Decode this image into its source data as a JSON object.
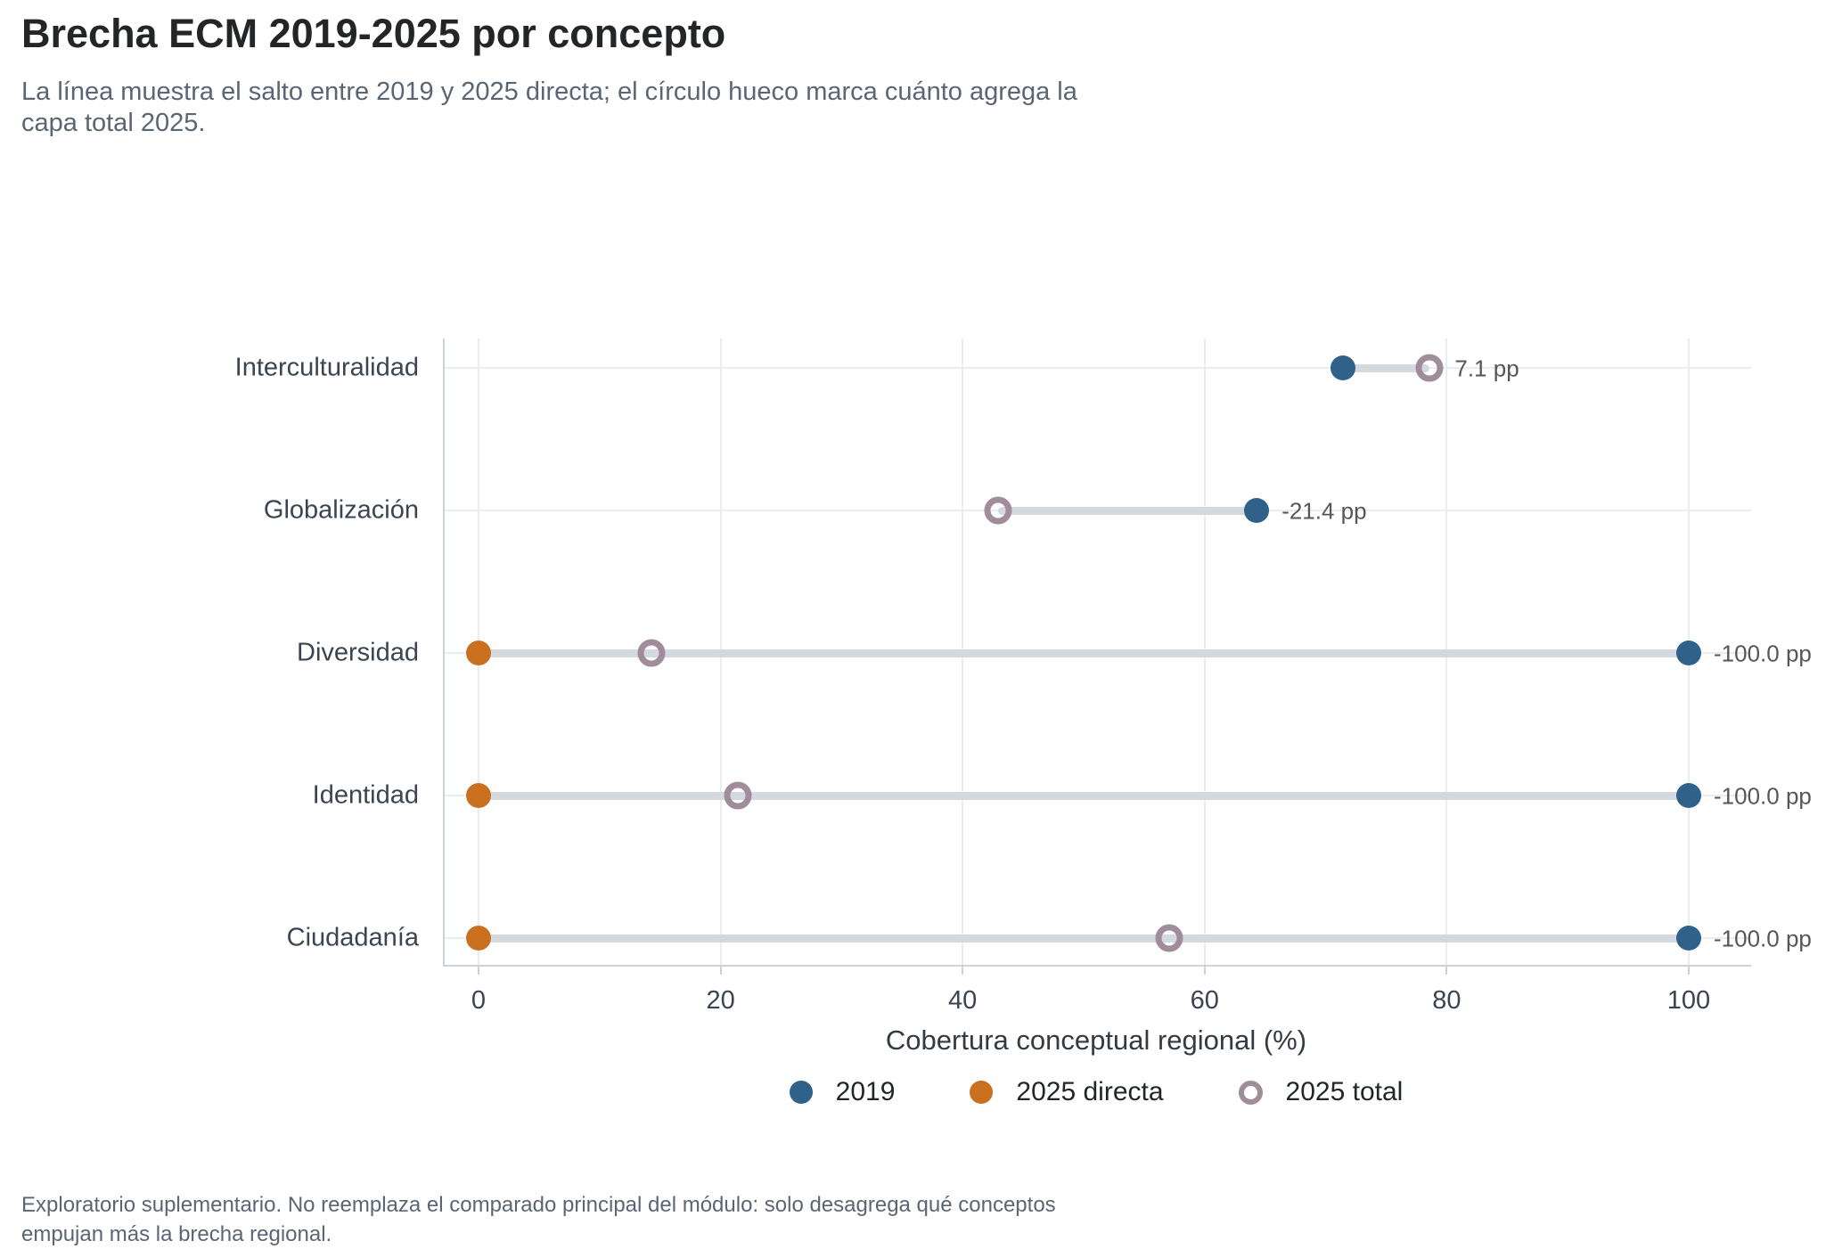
{
  "header": {
    "title": "Brecha ECM 2019-2025 por concepto",
    "subtitle_line1": "La línea muestra el salto entre 2019 y 2025 directa; el círculo hueco marca cuánto agrega la",
    "subtitle_line2": "capa total 2025."
  },
  "footer": {
    "line1": "Exploratorio suplementario. No reemplaza el comparado principal del módulo: solo desagrega qué conceptos",
    "line2": "empujan más la brecha regional."
  },
  "chart_data": {
    "type": "dumbbell",
    "title": "Brecha ECM 2019-2025 por concepto",
    "xlabel": "Cobertura conceptual regional (%)",
    "xlim": [
      0,
      100
    ],
    "xticks": [
      0,
      20,
      40,
      60,
      80,
      100
    ],
    "grid": true,
    "legend": [
      "2019",
      "2025 directa",
      "2025 total"
    ],
    "legend_position": "bottom-center",
    "categories": [
      "Interculturalidad",
      "Globalización",
      "Diversidad",
      "Identidad",
      "Ciudadanía"
    ],
    "rows": [
      {
        "category": "Interculturalidad",
        "v2019": 71.4,
        "v2025_directa": 78.6,
        "v2025_total": 78.6,
        "delta_label": "7.1 pp",
        "directa_marker_visible": false
      },
      {
        "category": "Globalización",
        "v2019": 64.3,
        "v2025_directa": 42.9,
        "v2025_total": 42.9,
        "delta_label": "-21.4 pp",
        "directa_marker_visible": false
      },
      {
        "category": "Diversidad",
        "v2019": 100,
        "v2025_directa": 0,
        "v2025_total": 14.3,
        "delta_label": "-100.0 pp",
        "directa_marker_visible": true
      },
      {
        "category": "Identidad",
        "v2019": 100,
        "v2025_directa": 0,
        "v2025_total": 21.4,
        "delta_label": "-100.0 pp",
        "directa_marker_visible": true
      },
      {
        "category": "Ciudadanía",
        "v2019": 100,
        "v2025_directa": 0,
        "v2025_total": 57.1,
        "delta_label": "-100.0 pp",
        "directa_marker_visible": true
      }
    ],
    "colors": {
      "s2019": "#2f6189",
      "s2025_directa": "#c9701e",
      "s2025_total": "#a08d99",
      "connector": "#d3d9df",
      "gridline": "#e9ecf0",
      "axisline": "#cbd2d9"
    }
  }
}
